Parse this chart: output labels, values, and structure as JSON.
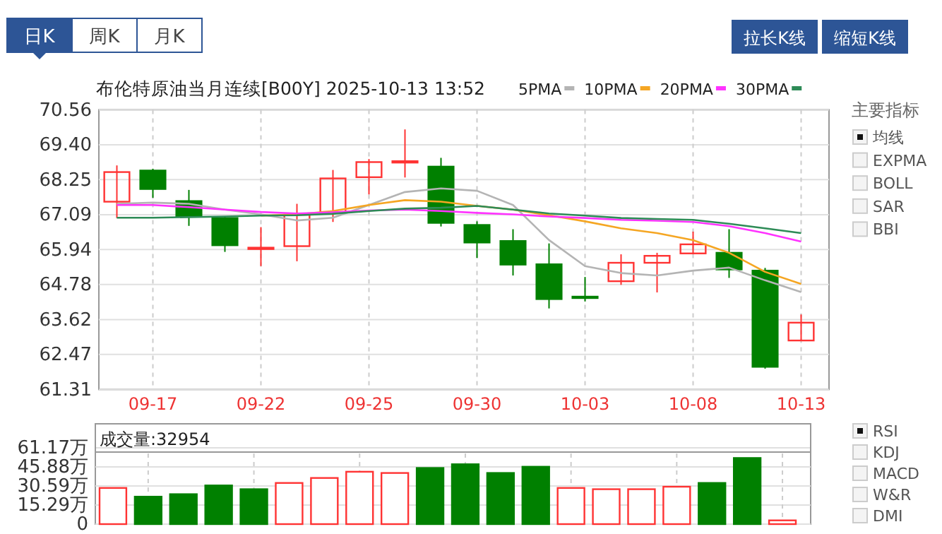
{
  "chart_data": [
    {
      "type": "candlestick",
      "title": "布伦特原油当月连续[B00Y] 2025-10-13 13:52",
      "categories": [
        null,
        "09-17",
        null,
        null,
        "09-22",
        null,
        null,
        "09-25",
        null,
        null,
        "09-30",
        null,
        null,
        "10-03",
        null,
        null,
        "10-08",
        null,
        null,
        "10-13"
      ],
      "ohlc": [
        [
          67.52,
          68.72,
          66.98,
          68.5
        ],
        [
          68.55,
          68.61,
          67.65,
          67.94
        ],
        [
          67.54,
          67.91,
          66.72,
          67.03
        ],
        [
          66.98,
          67.04,
          65.86,
          66.08
        ],
        [
          65.98,
          66.68,
          65.39,
          66.0
        ],
        [
          66.05,
          67.45,
          65.55,
          67.09
        ],
        [
          67.18,
          68.57,
          66.85,
          68.29
        ],
        [
          68.33,
          68.93,
          67.76,
          68.83
        ],
        [
          68.84,
          69.91,
          68.32,
          68.86
        ],
        [
          68.68,
          68.97,
          66.7,
          66.82
        ],
        [
          66.75,
          66.87,
          65.66,
          66.17
        ],
        [
          66.22,
          66.61,
          65.08,
          65.44
        ],
        [
          65.45,
          66.14,
          63.99,
          64.3
        ],
        [
          64.38,
          65.03,
          64.22,
          64.35
        ],
        [
          64.89,
          65.78,
          64.77,
          65.5
        ],
        [
          65.5,
          65.83,
          64.52,
          65.73
        ],
        [
          65.81,
          66.53,
          65.78,
          66.11
        ],
        [
          65.83,
          66.61,
          65.0,
          65.28
        ],
        [
          65.24,
          65.33,
          62.0,
          62.06
        ],
        [
          62.93,
          63.79,
          62.93,
          63.52
        ]
      ],
      "series": [
        {
          "type": "line",
          "name": "5PMA",
          "color": "#b4b4b4",
          "values": [
            67.45,
            67.49,
            67.45,
            67.26,
            67.1,
            66.9,
            66.99,
            67.41,
            67.84,
            67.96,
            67.88,
            67.41,
            66.25,
            65.39,
            65.16,
            65.08,
            65.24,
            65.34,
            64.92,
            64.53
          ]
        },
        {
          "type": "line",
          "name": "10PMA",
          "color": "#f5a623",
          "values": [
            null,
            null,
            null,
            null,
            67.06,
            67.1,
            67.21,
            67.41,
            67.57,
            67.52,
            67.38,
            67.26,
            67.07,
            66.87,
            66.64,
            66.48,
            66.25,
            65.83,
            65.2,
            64.8
          ]
        },
        {
          "type": "line",
          "name": "20PMA",
          "color": "#ff33ff",
          "values": [
            67.41,
            67.41,
            67.34,
            67.26,
            67.18,
            67.13,
            67.17,
            67.23,
            67.26,
            67.21,
            67.15,
            67.1,
            67.03,
            66.98,
            66.92,
            66.89,
            66.85,
            66.71,
            66.48,
            66.2
          ]
        },
        {
          "type": "line",
          "name": "30PMA",
          "color": "#2e8b57",
          "values": [
            66.99,
            66.99,
            67.01,
            67.03,
            67.06,
            67.07,
            67.12,
            67.21,
            67.29,
            67.32,
            67.38,
            67.26,
            67.13,
            67.06,
            66.98,
            66.95,
            66.92,
            66.79,
            66.64,
            66.48
          ]
        }
      ],
      "ylim": [
        61.31,
        70.56
      ],
      "yticks": [
        61.31,
        62.47,
        63.62,
        64.78,
        65.94,
        67.09,
        68.25,
        {
          "value": 69.4,
          "label": "69.40"
        },
        70.56
      ],
      "grid": true,
      "legend": "top"
    },
    {
      "type": "bar",
      "categories": [
        null,
        null,
        null,
        null,
        null,
        null,
        null,
        null,
        null,
        null,
        null,
        null,
        null,
        null,
        null,
        null,
        null,
        null,
        null,
        null
      ],
      "values": [
        29,
        22,
        24,
        31,
        28,
        33,
        37,
        42,
        41,
        45,
        48,
        41,
        46,
        29,
        28,
        28,
        30,
        33,
        53,
        3
      ],
      "colors": [
        "#ff3333",
        "#008000",
        "#008000",
        "#008000",
        "#008000",
        "#ff3333",
        "#ff3333",
        "#ff3333",
        "#ff3333",
        "#008000",
        "#008000",
        "#008000",
        "#008000",
        "#ff3333",
        "#ff3333",
        "#ff3333",
        "#ff3333",
        "#008000",
        "#008000",
        "#ff3333"
      ],
      "ylim": [
        0,
        61.17
      ],
      "yticks": [
        0,
        {
          "value": 15.29,
          "label": "15.29万"
        },
        {
          "value": 30.59,
          "label": "30.59万"
        },
        {
          "value": 45.88,
          "label": "45.88万"
        },
        {
          "value": 61.17,
          "label": "61.17万"
        }
      ],
      "annotations": [
        "成交量:32954"
      ],
      "grid": true,
      "tick_labels": "y"
    },
    {
      "type": "other",
      "annotations": [
        "日K",
        "周K",
        "月K",
        "拉长K线",
        "缩短K线",
        "主要指标",
        "均线",
        "EXPMA",
        "BOLL",
        "SAR",
        "BBI",
        "RSI",
        "KDJ",
        "MACD",
        "W&R",
        "DMI"
      ]
    }
  ]
}
